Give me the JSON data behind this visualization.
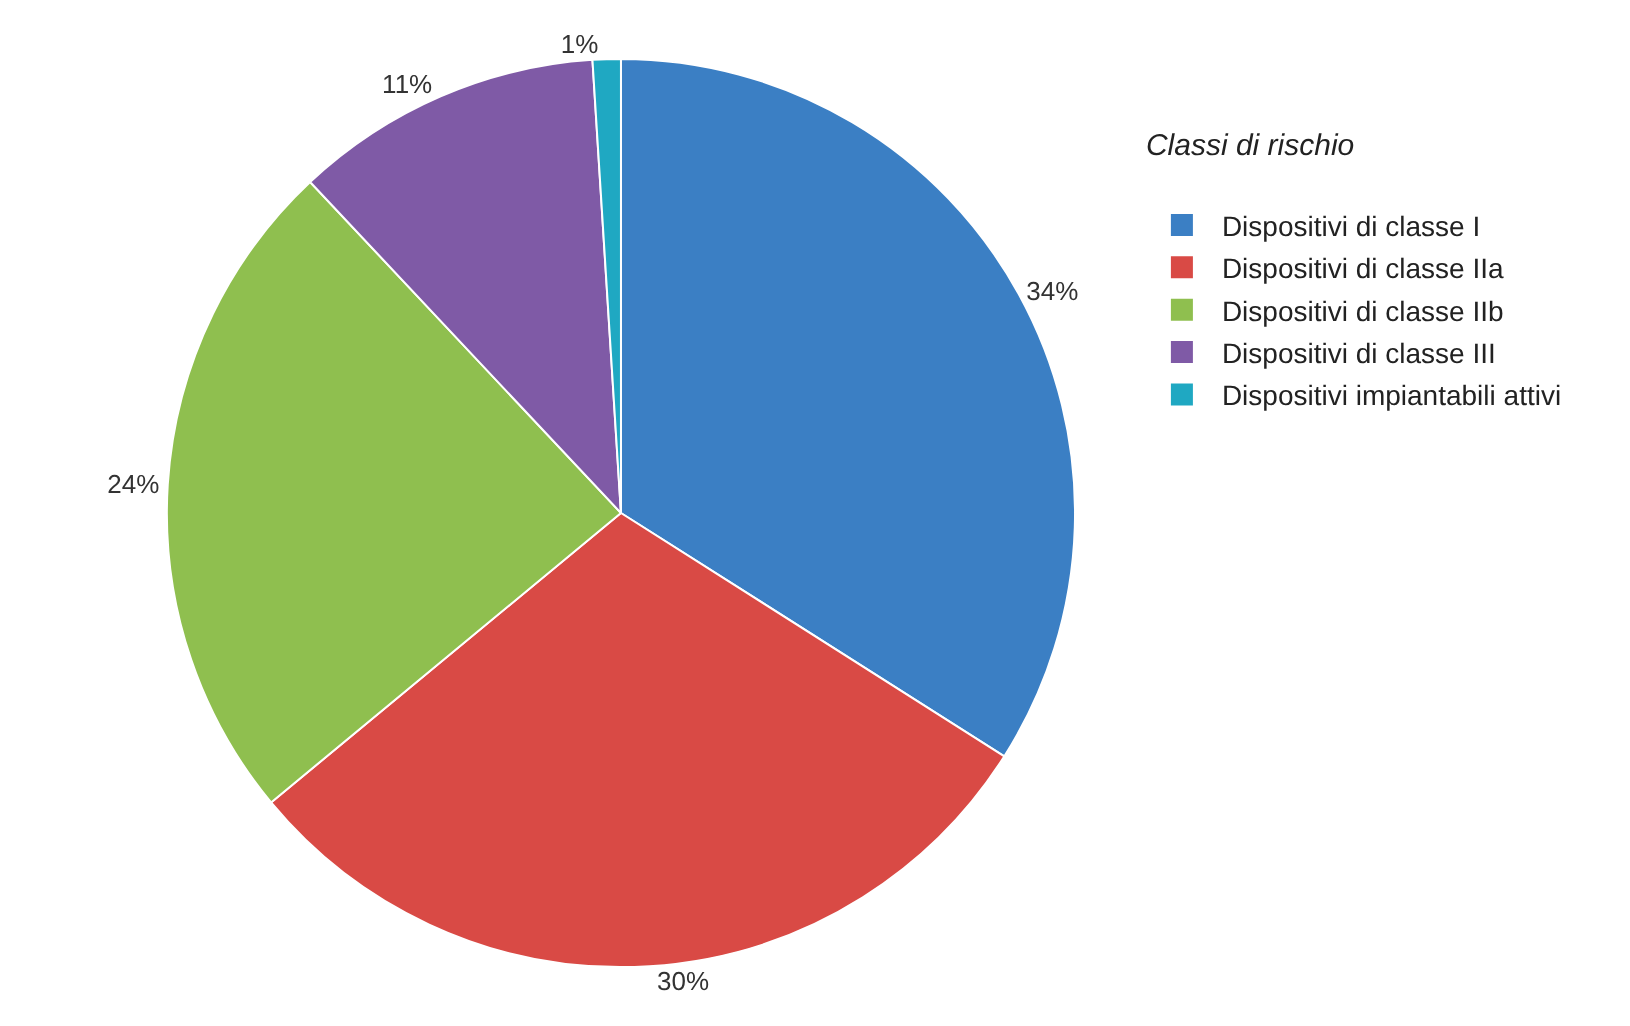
{
  "chart_data": {
    "type": "pie",
    "legend_title": "Classi di rischio",
    "legend": "right",
    "categories": [
      "Dispositivi di classe I",
      "Dispositivi di classe IIa",
      "Dispositivi di classe IIb",
      "Dispositivi di classe III",
      "Dispositivi impiantabili attivi"
    ],
    "values": [
      34,
      30,
      24,
      11,
      1
    ],
    "colors": [
      "#3b7fc4",
      "#d94a45",
      "#8fbf4f",
      "#7f5aa6",
      "#1fa8c2"
    ],
    "value_labels": [
      "34%",
      "30%",
      "24%",
      "11%",
      "1%"
    ]
  }
}
